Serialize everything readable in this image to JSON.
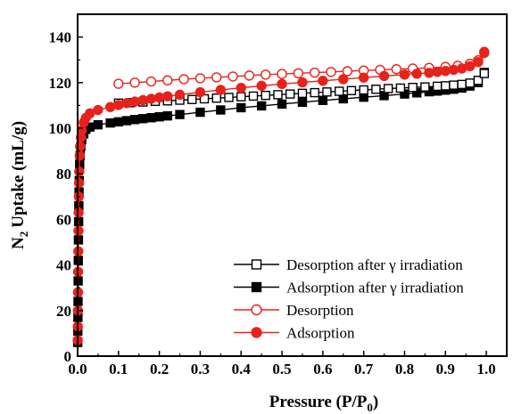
{
  "chart_data": {
    "type": "line",
    "xlabel": "Pressure (P/P",
    "xlabel_sub": "0",
    "xlabel_end": ")",
    "ylabel": "Uptake (mL/g)",
    "ylabel_prefix": "N",
    "ylabel_sub": "2",
    "xlim": [
      0,
      1.05
    ],
    "ylim": [
      0,
      150
    ],
    "xticks": [
      "0.0",
      "0.1",
      "0.2",
      "0.3",
      "0.4",
      "0.5",
      "0.6",
      "0.7",
      "0.8",
      "0.9",
      "1.0"
    ],
    "yticks": [
      "0",
      "20",
      "40",
      "60",
      "80",
      "100",
      "120",
      "140"
    ],
    "grid": false,
    "legend_position": "bottom-right",
    "series": [
      {
        "name": "Desorption after γ irradiation",
        "color": "#000000",
        "marker": "square-open",
        "x": [
          0.1,
          0.13,
          0.16,
          0.19,
          0.22,
          0.25,
          0.28,
          0.31,
          0.34,
          0.37,
          0.4,
          0.43,
          0.46,
          0.49,
          0.52,
          0.55,
          0.58,
          0.61,
          0.64,
          0.67,
          0.7,
          0.73,
          0.76,
          0.79,
          0.82,
          0.85,
          0.88,
          0.9,
          0.92,
          0.94,
          0.96,
          0.98,
          0.995
        ],
        "y": [
          111.0,
          111.2,
          111.5,
          111.8,
          112.0,
          112.3,
          112.6,
          112.9,
          113.2,
          113.5,
          113.8,
          114.1,
          114.4,
          114.7,
          115.0,
          115.3,
          115.6,
          115.9,
          116.2,
          116.5,
          116.8,
          117.1,
          117.4,
          117.6,
          117.9,
          118.1,
          118.4,
          118.6,
          118.9,
          119.2,
          119.8,
          121.0,
          124.0
        ]
      },
      {
        "name": "Adsorption after γ irradiation",
        "color": "#000000",
        "marker": "square-filled",
        "x": [
          0.0003,
          0.0005,
          0.0008,
          0.001,
          0.0013,
          0.0016,
          0.002,
          0.0025,
          0.003,
          0.0035,
          0.004,
          0.005,
          0.006,
          0.008,
          0.01,
          0.015,
          0.02,
          0.03,
          0.05,
          0.08,
          0.1,
          0.12,
          0.14,
          0.16,
          0.18,
          0.2,
          0.22,
          0.25,
          0.3,
          0.35,
          0.4,
          0.45,
          0.5,
          0.55,
          0.6,
          0.65,
          0.7,
          0.75,
          0.8,
          0.83,
          0.86,
          0.88,
          0.9,
          0.92,
          0.94,
          0.96,
          0.98,
          0.995
        ],
        "y": [
          6,
          11,
          17,
          24,
          33,
          42,
          51,
          59,
          66,
          72,
          77,
          84,
          88,
          92,
          95,
          97.5,
          99.5,
          100.5,
          101.5,
          102.3,
          102.8,
          103.3,
          103.8,
          104.2,
          104.6,
          105.0,
          105.4,
          106.0,
          107.0,
          108.0,
          109.0,
          109.8,
          110.6,
          111.4,
          112.2,
          112.9,
          113.6,
          114.3,
          115.0,
          115.5,
          116.0,
          116.3,
          116.7,
          117.1,
          117.6,
          118.5,
          120.0,
          124.5
        ]
      },
      {
        "name": "Desorption",
        "color": "#e8221b",
        "marker": "circle-open",
        "x": [
          0.1,
          0.14,
          0.18,
          0.22,
          0.26,
          0.3,
          0.34,
          0.38,
          0.42,
          0.46,
          0.5,
          0.54,
          0.58,
          0.62,
          0.66,
          0.7,
          0.74,
          0.78,
          0.82,
          0.86,
          0.9,
          0.93,
          0.96,
          0.98,
          0.995
        ],
        "y": [
          119.5,
          120.0,
          120.5,
          121.0,
          121.5,
          121.9,
          122.3,
          122.7,
          123.1,
          123.5,
          123.8,
          124.1,
          124.4,
          124.7,
          125.0,
          125.3,
          125.6,
          125.9,
          126.2,
          126.5,
          126.9,
          127.4,
          128.3,
          129.8,
          133.5
        ]
      },
      {
        "name": "Adsorption",
        "color": "#e8221b",
        "marker": "circle-filled",
        "x": [
          0.0003,
          0.0005,
          0.0008,
          0.001,
          0.0013,
          0.0016,
          0.002,
          0.0025,
          0.003,
          0.0035,
          0.004,
          0.005,
          0.006,
          0.008,
          0.01,
          0.015,
          0.02,
          0.03,
          0.05,
          0.08,
          0.1,
          0.12,
          0.14,
          0.16,
          0.18,
          0.2,
          0.22,
          0.25,
          0.3,
          0.35,
          0.4,
          0.45,
          0.5,
          0.55,
          0.6,
          0.65,
          0.7,
          0.75,
          0.8,
          0.83,
          0.86,
          0.88,
          0.9,
          0.92,
          0.94,
          0.96,
          0.98,
          0.995
        ],
        "y": [
          7,
          13,
          20,
          28,
          37,
          46,
          55,
          63,
          70,
          76,
          81,
          88,
          92,
          96,
          99,
          102.5,
          104.5,
          106.5,
          108.0,
          109.3,
          110.2,
          111.0,
          111.7,
          112.3,
          112.9,
          113.5,
          114.0,
          114.7,
          115.8,
          116.8,
          117.7,
          118.6,
          119.4,
          120.1,
          120.8,
          121.5,
          122.2,
          122.9,
          123.5,
          123.9,
          124.3,
          124.7,
          125.1,
          125.6,
          126.2,
          127.2,
          129.0,
          133.0
        ]
      }
    ]
  }
}
